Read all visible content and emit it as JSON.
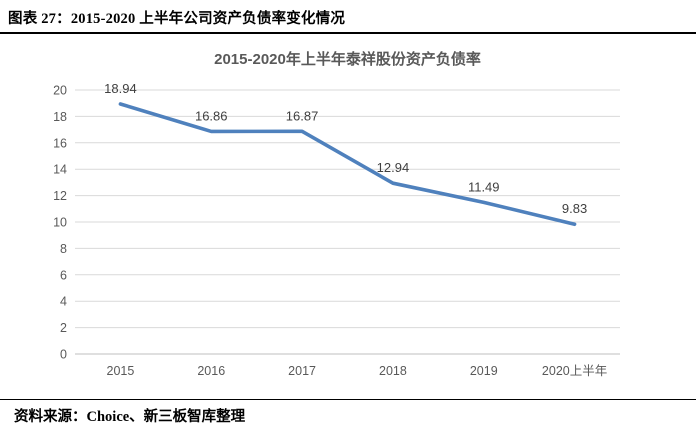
{
  "header": {
    "caption": "图表 27：2015-2020 上半年公司资产负债率变化情况"
  },
  "footer": {
    "source": "资料来源：Choice、新三板智库整理"
  },
  "chart_data": {
    "type": "line",
    "title": "2015-2020年上半年泰祥股份资产负债率",
    "categories": [
      "2015",
      "2016",
      "2017",
      "2018",
      "2019",
      "2020上半年"
    ],
    "series": [
      {
        "name": "资产负债率",
        "values": [
          18.94,
          16.86,
          16.87,
          12.94,
          11.49,
          9.83
        ]
      }
    ],
    "data_labels": [
      "18.94",
      "16.86",
      "16.87",
      "12.94",
      "11.49",
      "9.83"
    ],
    "xlabel": "",
    "ylabel": "",
    "ylim": [
      0,
      20
    ],
    "ytick_step": 2,
    "grid": true,
    "legend_position": "none",
    "colors": {
      "line": "#4F81BD",
      "grid": "#D9D9D9",
      "axis": "#BFBFBF",
      "title": "#595959",
      "tick": "#595959",
      "data_label": "#404040"
    }
  }
}
